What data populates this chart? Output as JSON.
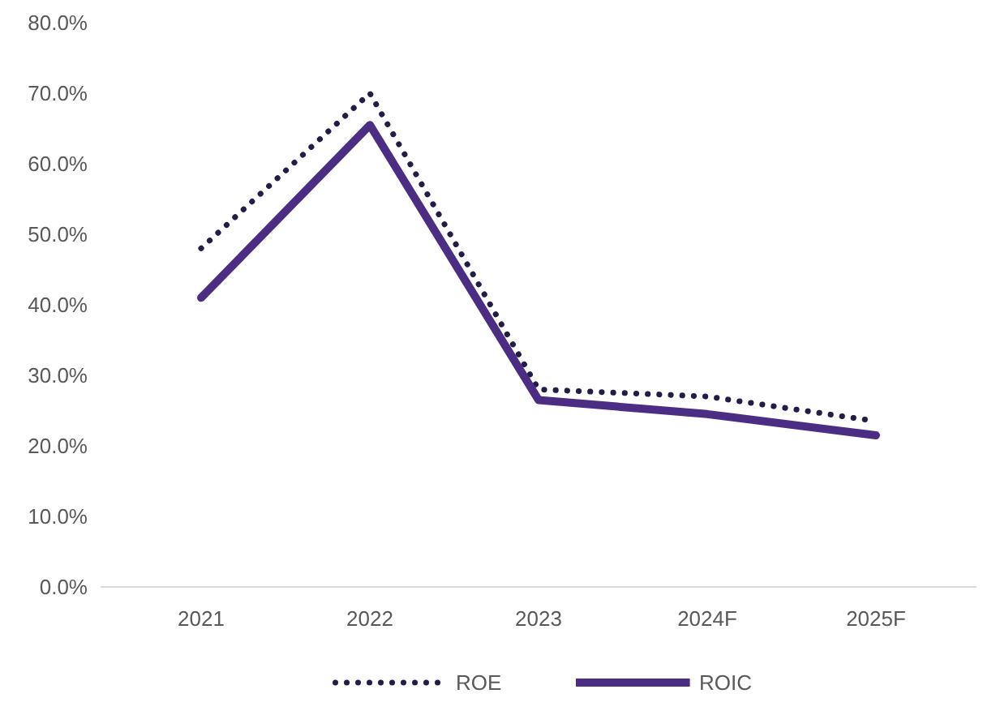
{
  "chart_data": {
    "type": "line",
    "categories": [
      "2021",
      "2022",
      "2023",
      "2024F",
      "2025F"
    ],
    "series": [
      {
        "name": "ROE",
        "color": "#231d45",
        "values": [
          48,
          70,
          28,
          27,
          23.5
        ],
        "line_style": "dotted"
      },
      {
        "name": "ROIC",
        "color": "#4b2e83",
        "values": [
          41,
          65.5,
          26.5,
          24.5,
          21.5
        ],
        "line_style": "solid"
      }
    ],
    "ylim": [
      0,
      80
    ],
    "yticks": [
      {
        "value": 0,
        "label": "0.0%"
      },
      {
        "value": 10,
        "label": "10.0%"
      },
      {
        "value": 20,
        "label": "20.0%"
      },
      {
        "value": 30,
        "label": "30.0%"
      },
      {
        "value": 40,
        "label": "40.0%"
      },
      {
        "value": 50,
        "label": "50.0%"
      },
      {
        "value": 60,
        "label": "60.0%"
      },
      {
        "value": 70,
        "label": "70.0%"
      },
      {
        "value": 80,
        "label": "80.0%"
      }
    ],
    "grid": false,
    "legend": "bottom",
    "marker": "none"
  }
}
